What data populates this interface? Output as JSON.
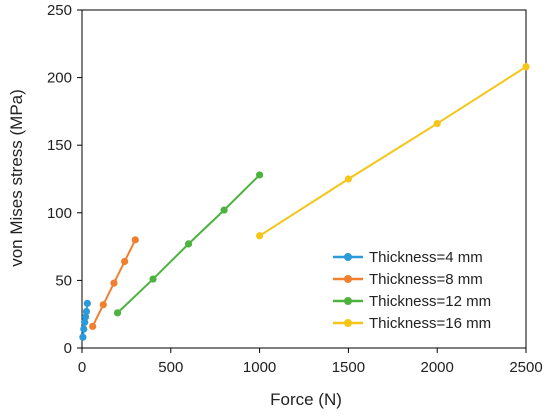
{
  "chart_data": {
    "type": "scatter",
    "title": "",
    "xlabel": "Force (N)",
    "ylabel": "von Mises stress (MPa)",
    "xlim": [
      0,
      2500
    ],
    "ylim": [
      0,
      250
    ],
    "xticks": [
      0,
      500,
      1000,
      1500,
      2000,
      2500
    ],
    "yticks": [
      0,
      50,
      100,
      150,
      200,
      250
    ],
    "grid": false,
    "legend_position": "bottom-right",
    "series": [
      {
        "name": "Thickness=4 mm",
        "color": "#2b9ad9",
        "points": [
          [
            5,
            8
          ],
          [
            10,
            14
          ],
          [
            15,
            19
          ],
          [
            20,
            23
          ],
          [
            25,
            27
          ],
          [
            30,
            33
          ]
        ]
      },
      {
        "name": "Thickness=8 mm",
        "color": "#f0802f",
        "points": [
          [
            60,
            16
          ],
          [
            120,
            32
          ],
          [
            180,
            48
          ],
          [
            240,
            64
          ],
          [
            300,
            80
          ]
        ]
      },
      {
        "name": "Thickness=12 mm",
        "color": "#4cb33e",
        "points": [
          [
            200,
            26
          ],
          [
            400,
            51
          ],
          [
            600,
            77
          ],
          [
            800,
            102
          ],
          [
            1000,
            128
          ]
        ]
      },
      {
        "name": "Thickness=16 mm",
        "color": "#f5c518",
        "points": [
          [
            1000,
            83
          ],
          [
            1500,
            125
          ],
          [
            2000,
            166
          ],
          [
            2500,
            208
          ]
        ]
      }
    ]
  }
}
